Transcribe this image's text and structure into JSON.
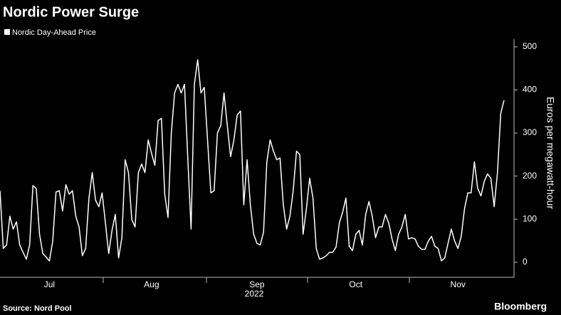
{
  "chart_data": {
    "type": "line",
    "title": "Nordic Power Surge",
    "xlabel": "2022",
    "ylabel": "Euros per megawatt-hour",
    "source": "Source: Nord Pool",
    "brand": "Bloomberg",
    "categories": [
      null,
      null,
      null,
      null,
      null,
      null,
      null,
      null,
      null,
      null,
      null,
      null,
      null,
      null,
      null,
      "Jul",
      null,
      null,
      null,
      null,
      null,
      null,
      null,
      null,
      null,
      null,
      null,
      null,
      null,
      null,
      null,
      null,
      null,
      null,
      null,
      null,
      null,
      null,
      null,
      null,
      null,
      null,
      null,
      null,
      null,
      null,
      "Aug",
      null,
      null,
      null,
      null,
      null,
      null,
      null,
      null,
      null,
      null,
      null,
      null,
      null,
      null,
      null,
      null,
      null,
      null,
      null,
      null,
      null,
      null,
      null,
      null,
      null,
      null,
      null,
      null,
      null,
      null,
      null,
      "Sep",
      null,
      null,
      null,
      null,
      null,
      null,
      null,
      null,
      null,
      null,
      null,
      null,
      null,
      null,
      null,
      null,
      null,
      null,
      null,
      null,
      null,
      null,
      null,
      null,
      null,
      null,
      null,
      null,
      null,
      "Oct",
      null,
      null,
      null,
      null,
      null,
      null,
      null,
      null,
      null,
      null,
      null,
      null,
      null,
      null,
      null,
      null,
      null,
      null,
      null,
      null,
      null,
      null,
      null,
      null,
      null,
      null,
      null,
      null,
      null,
      null,
      "Nov",
      null,
      null,
      null,
      null,
      null,
      null,
      null,
      null,
      null,
      null,
      null,
      null,
      null,
      null
    ],
    "series": [
      {
        "name": "Nordic Day-Ahead Price",
        "color": "#ffffff",
        "values": [
          166,
          32,
          40,
          107,
          77,
          94,
          40,
          23,
          7,
          40,
          178,
          171,
          65,
          20,
          12,
          3,
          49,
          163,
          166,
          119,
          180,
          158,
          166,
          107,
          82,
          15,
          32,
          149,
          208,
          144,
          129,
          161,
          91,
          20,
          74,
          111,
          10,
          57,
          238,
          208,
          99,
          82,
          208,
          228,
          208,
          284,
          253,
          225,
          329,
          334,
          158,
          104,
          300,
          393,
          413,
          393,
          413,
          242,
          77,
          413,
          470,
          393,
          406,
          284,
          161,
          166,
          300,
          317,
          393,
          317,
          245,
          284,
          342,
          351,
          133,
          238,
          133,
          65,
          44,
          40,
          70,
          233,
          284,
          258,
          238,
          242,
          133,
          77,
          107,
          166,
          258,
          250,
          65,
          124,
          195,
          149,
          32,
          7,
          10,
          15,
          23,
          23,
          35,
          91,
          116,
          149,
          37,
          27,
          65,
          74,
          40,
          111,
          141,
          107,
          57,
          82,
          82,
          111,
          91,
          54,
          27,
          65,
          82,
          111,
          54,
          57,
          54,
          37,
          30,
          30,
          49,
          60,
          37,
          32,
          3,
          10,
          44,
          77,
          49,
          32,
          60,
          124,
          161,
          161,
          233,
          171,
          154,
          188,
          205,
          195,
          129,
          208,
          346,
          376
        ]
      }
    ],
    "ylim": [
      -35,
      518
    ],
    "yticks": [
      0,
      100,
      200,
      300,
      400,
      500
    ]
  }
}
